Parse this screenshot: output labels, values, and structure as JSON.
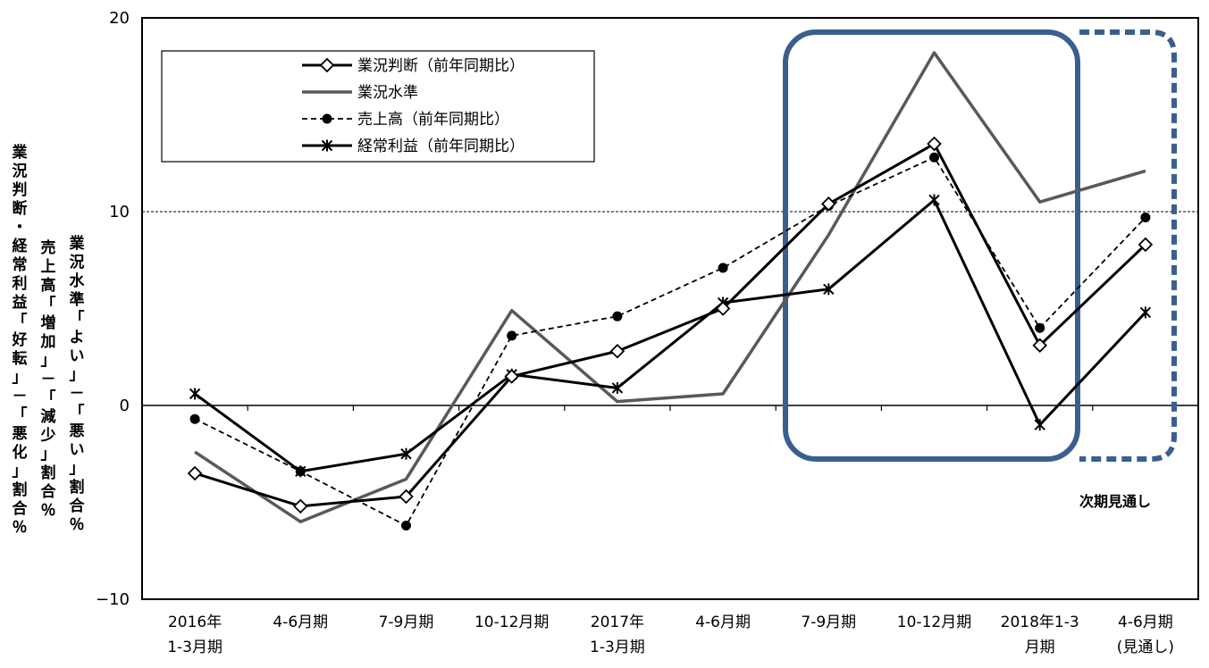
{
  "chart_data": {
    "type": "line",
    "categories": [
      [
        "2016年",
        "1-3月期"
      ],
      [
        "4-6月期"
      ],
      [
        "7-9月期"
      ],
      [
        "10-12月期"
      ],
      [
        "2017年",
        "1-3月期"
      ],
      [
        "4-6月期"
      ],
      [
        "7-9月期"
      ],
      [
        "10-12月期"
      ],
      [
        "2018年1-3",
        "月期"
      ],
      [
        "4-6月期",
        "(見通し)"
      ]
    ],
    "ylim": [
      -10,
      20
    ],
    "yticks": [
      -10,
      0,
      10,
      20
    ],
    "ylabels": [
      [
        "業",
        "況",
        "判",
        "断",
        "・",
        "経",
        "常",
        "利",
        "益",
        "「",
        "好",
        "転",
        "」",
        "－",
        "「",
        "悪",
        "化",
        "」",
        "割",
        "合",
        "％"
      ],
      [
        "売",
        "上",
        "高",
        "「",
        "増",
        "加",
        "」",
        "－",
        "「",
        "減",
        "少",
        "」",
        "割",
        "合",
        "％"
      ],
      [
        "業",
        "況",
        "水",
        "準",
        "「",
        "よ",
        "い",
        "」",
        "－",
        "「",
        "悪",
        "い",
        "」",
        "割",
        "合",
        "％"
      ]
    ],
    "reference_line": 10,
    "series": [
      {
        "name": "業況判断（前年同期比）",
        "values": [
          -3.5,
          -5.2,
          -4.7,
          1.5,
          2.8,
          5.0,
          10.4,
          13.5,
          3.1,
          8.3
        ],
        "color": "#000000",
        "dash": "solid",
        "marker": "diamond"
      },
      {
        "name": "業況水準",
        "values": [
          -2.4,
          -6.0,
          -3.8,
          4.9,
          0.2,
          0.6,
          8.8,
          18.2,
          10.5,
          12.1
        ],
        "color": "#595959",
        "dash": "solid",
        "marker": "none"
      },
      {
        "name": "売上高（前年同期比）",
        "values": [
          -0.7,
          -3.4,
          -6.2,
          3.6,
          4.6,
          7.1,
          10.3,
          12.8,
          4.0,
          9.7
        ],
        "color": "#000000",
        "dash": "dashed",
        "marker": "circle"
      },
      {
        "name": "経常利益（前年同期比）",
        "values": [
          0.6,
          -3.4,
          -2.5,
          1.6,
          0.9,
          5.3,
          6.0,
          10.6,
          -1.0,
          4.8
        ],
        "color": "#000000",
        "dash": "solid",
        "marker": "star"
      }
    ],
    "legend_position": "top-left",
    "annotation": "次期見通し",
    "highlight_color": "#3a5f8f"
  }
}
